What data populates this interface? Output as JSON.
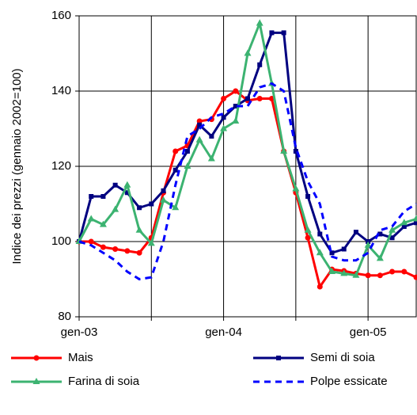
{
  "chart_data": {
    "type": "line",
    "y_label": "Indice dei prezzi (gennaio 2002=100)",
    "categories": [
      "gen-03",
      null,
      null,
      null,
      null,
      null,
      null,
      null,
      null,
      null,
      null,
      null,
      "gen-04",
      null,
      null,
      null,
      null,
      null,
      null,
      null,
      null,
      null,
      null,
      null,
      "gen-05",
      null,
      null,
      null,
      null
    ],
    "ylim": [
      80,
      160
    ],
    "yticks": [
      80,
      100,
      120,
      140,
      160
    ],
    "grid": true,
    "xgrid_every": 6,
    "legend": "bottom",
    "series": [
      {
        "name": "Mais",
        "color": "#ff0000",
        "marker": "circle",
        "dashed": false,
        "values": [
          100,
          100,
          98.5,
          98,
          97.5,
          97,
          101,
          113,
          124,
          125.5,
          132,
          132.5,
          138,
          140,
          137.5,
          138,
          138,
          124,
          113,
          101,
          88,
          92.6,
          92.2,
          91.5,
          91,
          91,
          92,
          92,
          90.5
        ]
      },
      {
        "name": "Semi di soia",
        "color": "#000080",
        "marker": "square",
        "dashed": false,
        "values": [
          100,
          112,
          112,
          115,
          113,
          109,
          110,
          113.5,
          119,
          124,
          131,
          128,
          133,
          136,
          138,
          147,
          155.5,
          155.5,
          124,
          112,
          102,
          97,
          98,
          102.5,
          100,
          102,
          101,
          104,
          105
        ]
      },
      {
        "name": "Farina di soia",
        "color": "#3cb371",
        "marker": "triangle",
        "dashed": false,
        "values": [
          100,
          106,
          104.5,
          108.5,
          115,
          103,
          99.5,
          111,
          109,
          120,
          127,
          122,
          130,
          132,
          150,
          158,
          142,
          124,
          114,
          103,
          97,
          92,
          91.5,
          91,
          99,
          95.5,
          103,
          105,
          106
        ]
      },
      {
        "name": "Polpe essicate",
        "color": "#0000ff",
        "marker": null,
        "dashed": true,
        "values": [
          100,
          99,
          97,
          95,
          92,
          90,
          90.5,
          100,
          115,
          128,
          130,
          133,
          134,
          136,
          136,
          141,
          142,
          140,
          125,
          116,
          110,
          96,
          95,
          95,
          97,
          103,
          104,
          108,
          110
        ]
      }
    ]
  }
}
